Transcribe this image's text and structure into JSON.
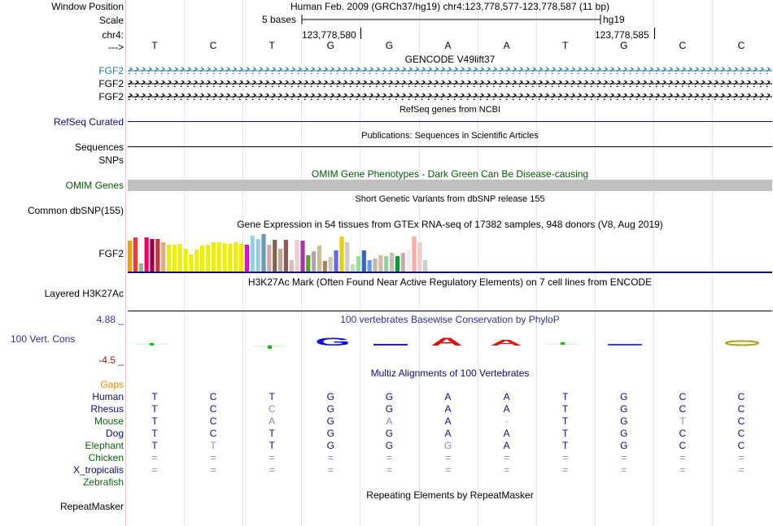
{
  "position": {
    "labels": {
      "window_position": "Window Position",
      "scale": "Scale",
      "chr": "chr4:",
      "arrow": "--->"
    },
    "assembly_text": "Human Feb. 2009 (GRCh37/hg19)   chr4:123,778,577-123,778,587 (11 bp)",
    "scale_text": "5 bases",
    "scale_db": "hg19",
    "coord_left": "123,778,580",
    "coord_right": "123,778,585",
    "bases": [
      "T",
      "C",
      "T",
      "G",
      "G",
      "A",
      "A",
      "T",
      "G",
      "C",
      "C"
    ]
  },
  "tracks": {
    "gencode": {
      "title": "GENCODE V49lift37",
      "items": [
        "FGF2",
        "FGF2",
        "FGF2"
      ],
      "colors": [
        "#1a7a9a",
        "#000000",
        "#000000"
      ]
    },
    "refseq": {
      "title": "RefSeq genes from NCBI",
      "label": "RefSeq Curated",
      "color": "#0c0c78"
    },
    "publications": {
      "title": "Publications: Sequences in Scientific Articles",
      "label": "Sequences"
    },
    "snps": {
      "label": "SNPs"
    },
    "omim": {
      "title": "OMIM Gene Phenotypes - Dark Green Can Be Disease-causing",
      "label": "OMIM Genes",
      "color": "#005a00"
    },
    "dbsnp": {
      "title": "Short Genetic Variants from dbSNP release 155",
      "label": "Common dbSNP(155)"
    },
    "gtex": {
      "title": "Gene Expression in 54 tissues from GTEx RNA-seq of 17382 samples, 948 donors (V8, Aug 2019)",
      "label": "FGF2"
    },
    "h3k27ac": {
      "title": "H3K27Ac Mark (Often Found Near Active Regulatory Elements) on 7 cell lines from ENCODE",
      "label": "Layered H3K27Ac"
    },
    "phylop": {
      "title": "100 vertebrates Basewise Conservation by PhyloP",
      "label": "100 Vert. Cons",
      "max": "4.88 _",
      "min": "-4.5 _",
      "title_color": "#303090",
      "max_color": "#303090",
      "min_color": "#8b1a1a"
    },
    "multiz": {
      "title": "Multiz Alignments of 100 Vertebrates",
      "gaps_label": "Gaps",
      "species": [
        {
          "name": "Human",
          "color": "#0c0c78",
          "bases": [
            "T",
            "C",
            "T",
            "G",
            "G",
            "A",
            "A",
            "T",
            "G",
            "C",
            "C"
          ]
        },
        {
          "name": "Rhesus",
          "color": "#0c0c78",
          "bases": [
            "T",
            "C",
            "C",
            "G",
            "G",
            "A",
            "A",
            "T",
            "G",
            "C",
            "C"
          ]
        },
        {
          "name": "Mouse",
          "color": "#0c6010",
          "bases": [
            "T",
            "C",
            "A",
            "G",
            "A",
            "A",
            "-",
            "T",
            "G",
            "T",
            "C"
          ]
        },
        {
          "name": "Dog",
          "color": "#0c0c78",
          "bases": [
            "T",
            "C",
            "T",
            "G",
            "G",
            "A",
            "A",
            "T",
            "G",
            "C",
            "C"
          ]
        },
        {
          "name": "Elephant",
          "color": "#0c6010",
          "bases": [
            "T",
            "T",
            "T",
            "G",
            "G",
            "G",
            "A",
            "T",
            "G",
            "C",
            "C"
          ]
        },
        {
          "name": "Chicken",
          "color": "#0c6010",
          "bases": [
            "=",
            "=",
            "=",
            "=",
            "=",
            "=",
            "=",
            "=",
            "=",
            "=",
            "="
          ]
        },
        {
          "name": "X_tropicalis",
          "color": "#0c0c78",
          "bases": [
            "=",
            "=",
            "=",
            "=",
            "=",
            "=",
            "=",
            "=",
            "=",
            "=",
            "="
          ]
        },
        {
          "name": "Zebrafish",
          "color": "#0c6010",
          "bases": []
        }
      ]
    },
    "repeatmasker": {
      "title": "Repeating Elements by RepeatMasker",
      "label": "RepeatMasker"
    }
  }
}
